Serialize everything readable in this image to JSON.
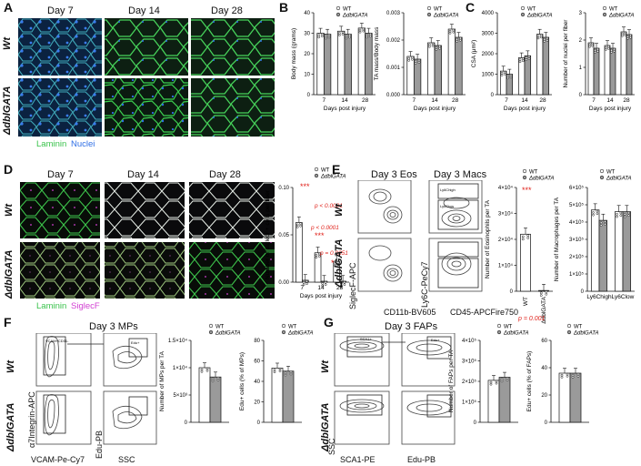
{
  "panels": {
    "A": "A",
    "B": "B",
    "C": "C",
    "D": "D",
    "E": "E",
    "F": "F",
    "G": "G"
  },
  "genotypes": {
    "wt": "Wt",
    "ko": "ΔdblGATA"
  },
  "legend": {
    "wt": "WT",
    "ko": "ΔdblGATA"
  },
  "colors": {
    "wt": "#ffffff",
    "ko": "#9a9a9a",
    "laminin": "#39c24b",
    "nuclei": "#2f6fe6",
    "siglecf": "#d23fd2",
    "sig": "#e0231c"
  },
  "panelA": {
    "days": [
      "Day 7",
      "Day 14",
      "Day 28"
    ],
    "stain_laminin": "Laminin",
    "stain_nuclei": "Nuclei"
  },
  "panelD": {
    "days": [
      "Day 7",
      "Day 14",
      "Day 28"
    ],
    "stain_laminin": "Laminin",
    "stain_siglecf": "SiglecF"
  },
  "panelE": {
    "eos_title": "Day 3 Eos",
    "macs_title": "Day 3 Macs",
    "x1": "CD11b-BV605",
    "y1": "SiglecF-APC",
    "x2": "CD45-APCFire750",
    "y2": "Ly6C-PeCy7",
    "gate_high": "Ly6Chigh",
    "gate_low": "Ly6Clow"
  },
  "panelF": {
    "title": "Day 3 MPs",
    "gate1": "VCAM+CD31-",
    "gate2": "Edu+",
    "y1": "α7Integrin-APC",
    "x1": "VCAM-Pe-Cy7",
    "y2": "Edu-PB",
    "x2": "SSC"
  },
  "panelG": {
    "title": "Day 3 FAPs",
    "gate1": "SCA1+",
    "gate2": "Edu+",
    "y1": "SSC",
    "x1": "SCA1-PE",
    "x2": "Edu-PB"
  },
  "chart_data": [
    {
      "id": "B1",
      "type": "bar",
      "categories": [
        "7",
        "14",
        "28"
      ],
      "xlabel": "Days post injury",
      "ylabel": "Body mass (grams)",
      "ylim": [
        0,
        40
      ],
      "yticks": [
        "0",
        "10",
        "20",
        "30",
        "40"
      ],
      "series": [
        {
          "name": "WT",
          "values": [
            30,
            31,
            32.5
          ]
        },
        {
          "name": "ΔdblGATA",
          "values": [
            29.5,
            29.5,
            30
          ]
        }
      ]
    },
    {
      "id": "B2",
      "type": "bar",
      "categories": [
        "7",
        "14",
        "28"
      ],
      "xlabel": "Days post injury",
      "ylabel": "TA mass/Body mass",
      "ylim": [
        0,
        0.003
      ],
      "yticks": [
        "0.000",
        "0.001",
        "0.002",
        "0.003"
      ],
      "series": [
        {
          "name": "WT",
          "values": [
            0.0014,
            0.0019,
            0.0024
          ]
        },
        {
          "name": "ΔdblGATA",
          "values": [
            0.0013,
            0.0018,
            0.0021
          ]
        }
      ]
    },
    {
      "id": "C1",
      "type": "bar",
      "categories": [
        "7",
        "14",
        "28"
      ],
      "xlabel": "Days post injury",
      "ylabel": "CSA (μm²)",
      "ylim": [
        0,
        4000
      ],
      "yticks": [
        "0",
        "1000",
        "2000",
        "3000",
        "4000"
      ],
      "series": [
        {
          "name": "WT",
          "values": [
            1150,
            1800,
            2950
          ]
        },
        {
          "name": "ΔdblGATA",
          "values": [
            1000,
            1900,
            2800
          ]
        }
      ]
    },
    {
      "id": "C2",
      "type": "bar",
      "categories": [
        "7",
        "14",
        "28"
      ],
      "xlabel": "Days post injury",
      "ylabel": "Number of nuclei per fiber",
      "ylim": [
        0,
        3
      ],
      "yticks": [
        "0",
        "1",
        "2",
        "3"
      ],
      "series": [
        {
          "name": "WT",
          "values": [
            1.9,
            1.8,
            2.3
          ]
        },
        {
          "name": "ΔdblGATA",
          "values": [
            1.7,
            1.7,
            2.2
          ]
        }
      ]
    },
    {
      "id": "D1",
      "type": "bar",
      "categories": [
        "7",
        "14",
        "28"
      ],
      "xlabel": "Days post injury",
      "ylabel": "Number of SiglecF+ cells per fiber",
      "ylim": [
        0,
        0.1
      ],
      "yticks": [
        "0.00",
        "0.05",
        "0.10"
      ],
      "series": [
        {
          "name": "WT",
          "values": [
            0.063,
            0.031,
            0.022
          ]
        },
        {
          "name": "ΔdblGATA",
          "values": [
            0.002,
            0.001,
            0.001
          ]
        }
      ],
      "annotations": [
        "***",
        "p < 0.0001",
        "p < 0.0001",
        "***",
        "p = 0.0351",
        "*"
      ]
    },
    {
      "id": "E1",
      "type": "bar",
      "categories": [
        "WT",
        "ΔdblGATA"
      ],
      "xlabel": "",
      "ylabel": "Number of Eosinophils per TA",
      "ylim": [
        0,
        40000
      ],
      "yticks": [
        "0",
        "1×10⁴",
        "2×10⁴",
        "3×10⁴",
        "4×10⁴"
      ],
      "series": [
        {
          "name": "value",
          "values": [
            22000,
            300
          ]
        }
      ],
      "annotations": [
        "***",
        "p = 0.001"
      ]
    },
    {
      "id": "E2",
      "type": "bar",
      "categories": [
        "Ly6Chigh",
        "Ly6Clow"
      ],
      "xlabel": "",
      "ylabel": "Number of Macrophages per TA",
      "ylim": [
        0,
        600000
      ],
      "yticks": [
        "0",
        "1×10⁵",
        "2×10⁵",
        "3×10⁵",
        "4×10⁵",
        "5×10⁵",
        "6×10⁵"
      ],
      "series": [
        {
          "name": "WT",
          "values": [
            470000,
            460000
          ]
        },
        {
          "name": "ΔdblGATA",
          "values": [
            410000,
            460000
          ]
        }
      ]
    },
    {
      "id": "F1",
      "type": "bar",
      "categories": [
        ""
      ],
      "xlabel": "",
      "ylabel": "Number of MPs per TA",
      "ylim": [
        0,
        15000
      ],
      "yticks": [
        "0",
        "5×10³",
        "1×10⁴",
        "1.5×10⁴"
      ],
      "series": [
        {
          "name": "WT",
          "values": [
            10000
          ]
        },
        {
          "name": "ΔdblGATA",
          "values": [
            8300
          ]
        }
      ]
    },
    {
      "id": "F2",
      "type": "bar",
      "categories": [
        ""
      ],
      "xlabel": "",
      "ylabel": "Edu+ cells (% of MPs)",
      "ylim": [
        0,
        80
      ],
      "yticks": [
        "0",
        "20",
        "40",
        "60",
        "80"
      ],
      "series": [
        {
          "name": "WT",
          "values": [
            53
          ]
        },
        {
          "name": "ΔdblGATA",
          "values": [
            50
          ]
        }
      ]
    },
    {
      "id": "G1",
      "type": "bar",
      "categories": [
        ""
      ],
      "xlabel": "",
      "ylabel": "Number of FAPs per TA",
      "ylim": [
        0,
        400000
      ],
      "yticks": [
        "0",
        "1×10⁵",
        "2×10⁵",
        "3×10⁵",
        "4×10⁵"
      ],
      "series": [
        {
          "name": "WT",
          "values": [
            205000
          ]
        },
        {
          "name": "ΔdblGATA",
          "values": [
            220000
          ]
        }
      ]
    },
    {
      "id": "G2",
      "type": "bar",
      "categories": [
        ""
      ],
      "xlabel": "",
      "ylabel": "Edu+ cells (% of FAPs)",
      "ylim": [
        0,
        60
      ],
      "yticks": [
        "0",
        "20",
        "40",
        "60"
      ],
      "series": [
        {
          "name": "WT",
          "values": [
            36
          ]
        },
        {
          "name": "ΔdblGATA",
          "values": [
            36
          ]
        }
      ]
    }
  ]
}
